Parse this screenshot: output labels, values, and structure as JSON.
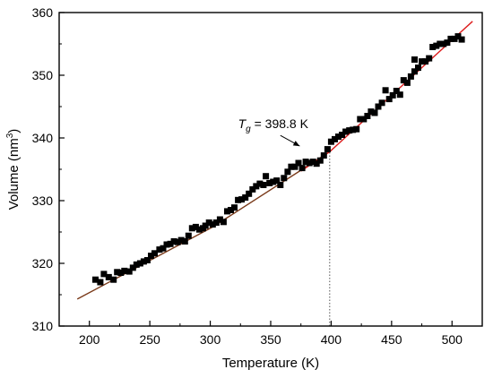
{
  "chart_data": {
    "type": "scatter",
    "title": "",
    "xlabel": "Temperature (K)",
    "ylabel": {
      "base": "Volume (nm",
      "sup": "3",
      "close": ")"
    },
    "xlim": [
      175,
      525
    ],
    "ylim": [
      310,
      360
    ],
    "x_ticks": [
      200,
      250,
      300,
      350,
      400,
      450,
      500
    ],
    "y_ticks": [
      310,
      320,
      330,
      340,
      350,
      360
    ],
    "grid": false,
    "legend": "none",
    "annotation": {
      "T": "T",
      "sub": "g",
      "text": " = 398.8 K",
      "x": 398.8
    },
    "colors": {
      "points": "#000000",
      "fit_low": "#7a3a1a",
      "fit_high": "#dd1c1c",
      "axis": "#000000",
      "guide": "#555555"
    },
    "fit_lines": [
      {
        "name": "",
        "x": [
          190,
          302,
          398.8
        ],
        "y": [
          314.3,
          325.8,
          337.8
        ]
      },
      {
        "name": "",
        "x": [
          375,
          398.8,
          517
        ],
        "y": [
          334.7,
          337.8,
          358.6
        ]
      }
    ],
    "points": [
      [
        205,
        317.4
      ],
      [
        209,
        317.0
      ],
      [
        212,
        318.3
      ],
      [
        216,
        317.8
      ],
      [
        220,
        317.4
      ],
      [
        223,
        318.6
      ],
      [
        226,
        318.5
      ],
      [
        229,
        318.8
      ],
      [
        233,
        318.7
      ],
      [
        236,
        319.3
      ],
      [
        239,
        319.8
      ],
      [
        242,
        320.0
      ],
      [
        245,
        320.3
      ],
      [
        248,
        320.5
      ],
      [
        251,
        321.2
      ],
      [
        254,
        321.6
      ],
      [
        258,
        322.2
      ],
      [
        261,
        322.4
      ],
      [
        264,
        323.0
      ],
      [
        267,
        323.1
      ],
      [
        270,
        323.5
      ],
      [
        273,
        323.4
      ],
      [
        276,
        323.7
      ],
      [
        279,
        323.5
      ],
      [
        282,
        324.4
      ],
      [
        285,
        325.6
      ],
      [
        288,
        325.8
      ],
      [
        291,
        325.4
      ],
      [
        294,
        325.6
      ],
      [
        296,
        326.0
      ],
      [
        299,
        326.5
      ],
      [
        302,
        326.2
      ],
      [
        305,
        326.5
      ],
      [
        308,
        327.0
      ],
      [
        311,
        326.6
      ],
      [
        314,
        328.3
      ],
      [
        317,
        328.5
      ],
      [
        320,
        328.9
      ],
      [
        323,
        330.1
      ],
      [
        326,
        330.2
      ],
      [
        329,
        330.5
      ],
      [
        332,
        331.1
      ],
      [
        335,
        331.8
      ],
      [
        338,
        332.3
      ],
      [
        341,
        332.7
      ],
      [
        344,
        332.5
      ],
      [
        346,
        333.9
      ],
      [
        349,
        332.8
      ],
      [
        352,
        333.0
      ],
      [
        355,
        333.2
      ],
      [
        358,
        332.5
      ],
      [
        361,
        333.6
      ],
      [
        364,
        334.6
      ],
      [
        367,
        335.4
      ],
      [
        370,
        335.4
      ],
      [
        373,
        336.0
      ],
      [
        376,
        335.2
      ],
      [
        379,
        336.2
      ],
      [
        382,
        336.0
      ],
      [
        385,
        336.2
      ],
      [
        388,
        335.9
      ],
      [
        391,
        336.4
      ],
      [
        394,
        337.2
      ],
      [
        397,
        338.2
      ],
      [
        400,
        339.4
      ],
      [
        403,
        339.8
      ],
      [
        406,
        340.2
      ],
      [
        409,
        340.5
      ],
      [
        412,
        341.0
      ],
      [
        415,
        341.2
      ],
      [
        418,
        341.3
      ],
      [
        421,
        341.4
      ],
      [
        424,
        343.0
      ],
      [
        427,
        343.0
      ],
      [
        430,
        343.5
      ],
      [
        433,
        344.2
      ],
      [
        436,
        344.0
      ],
      [
        439,
        345.0
      ],
      [
        442,
        345.6
      ],
      [
        445,
        347.6
      ],
      [
        448,
        346.2
      ],
      [
        451,
        346.8
      ],
      [
        454,
        347.5
      ],
      [
        457,
        346.9
      ],
      [
        460,
        349.2
      ],
      [
        463,
        348.8
      ],
      [
        466,
        349.8
      ],
      [
        469,
        350.6
      ],
      [
        469,
        352.5
      ],
      [
        472,
        351.2
      ],
      [
        475,
        352.2
      ],
      [
        478,
        352.2
      ],
      [
        481,
        352.7
      ],
      [
        484,
        354.5
      ],
      [
        487,
        354.7
      ],
      [
        490,
        355.0
      ],
      [
        493,
        355.0
      ],
      [
        496,
        355.2
      ],
      [
        499,
        355.8
      ],
      [
        502,
        355.8
      ],
      [
        505,
        356.2
      ],
      [
        508,
        355.7
      ]
    ]
  }
}
